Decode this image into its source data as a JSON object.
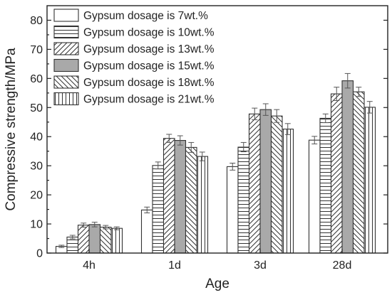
{
  "chart_data": {
    "type": "bar",
    "xlabel": "Age",
    "ylabel": "Compressive strength/MPa",
    "categories": [
      "4h",
      "1d",
      "3d",
      "28d"
    ],
    "ylim": [
      0,
      85
    ],
    "yticks": [
      0,
      10,
      20,
      30,
      40,
      50,
      60,
      70,
      80
    ],
    "grid": false,
    "legend_position": "top-left",
    "series": [
      {
        "name": "Gypsum dosage is 7wt.%",
        "pattern": "blank",
        "values": [
          2.3,
          14.8,
          29.7,
          38.8
        ],
        "errors": [
          0.4,
          1.0,
          1.2,
          1.3
        ]
      },
      {
        "name": "Gypsum dosage is 10wt.%",
        "pattern": "horizontal",
        "values": [
          5.5,
          30.1,
          36.4,
          46.3
        ],
        "errors": [
          0.6,
          1.2,
          1.6,
          1.5
        ]
      },
      {
        "name": "Gypsum dosage is 13wt.%",
        "pattern": "diagonal",
        "values": [
          9.6,
          39.4,
          47.8,
          54.7
        ],
        "errors": [
          0.7,
          1.4,
          2.0,
          2.3
        ]
      },
      {
        "name": "Gypsum dosage is 15wt.%",
        "pattern": "solid-gray",
        "values": [
          9.8,
          38.7,
          49.3,
          59.2
        ],
        "errors": [
          0.8,
          1.6,
          2.0,
          2.5
        ]
      },
      {
        "name": "Gypsum dosage is 18wt.%",
        "pattern": "backdiag",
        "values": [
          8.9,
          36.3,
          47.1,
          55.4
        ],
        "errors": [
          0.6,
          1.7,
          2.2,
          1.6
        ]
      },
      {
        "name": "Gypsum dosage is 21wt.%",
        "pattern": "vertical",
        "values": [
          8.5,
          33.2,
          42.6,
          50.1
        ],
        "errors": [
          0.5,
          1.5,
          1.9,
          2.0
        ]
      }
    ]
  }
}
